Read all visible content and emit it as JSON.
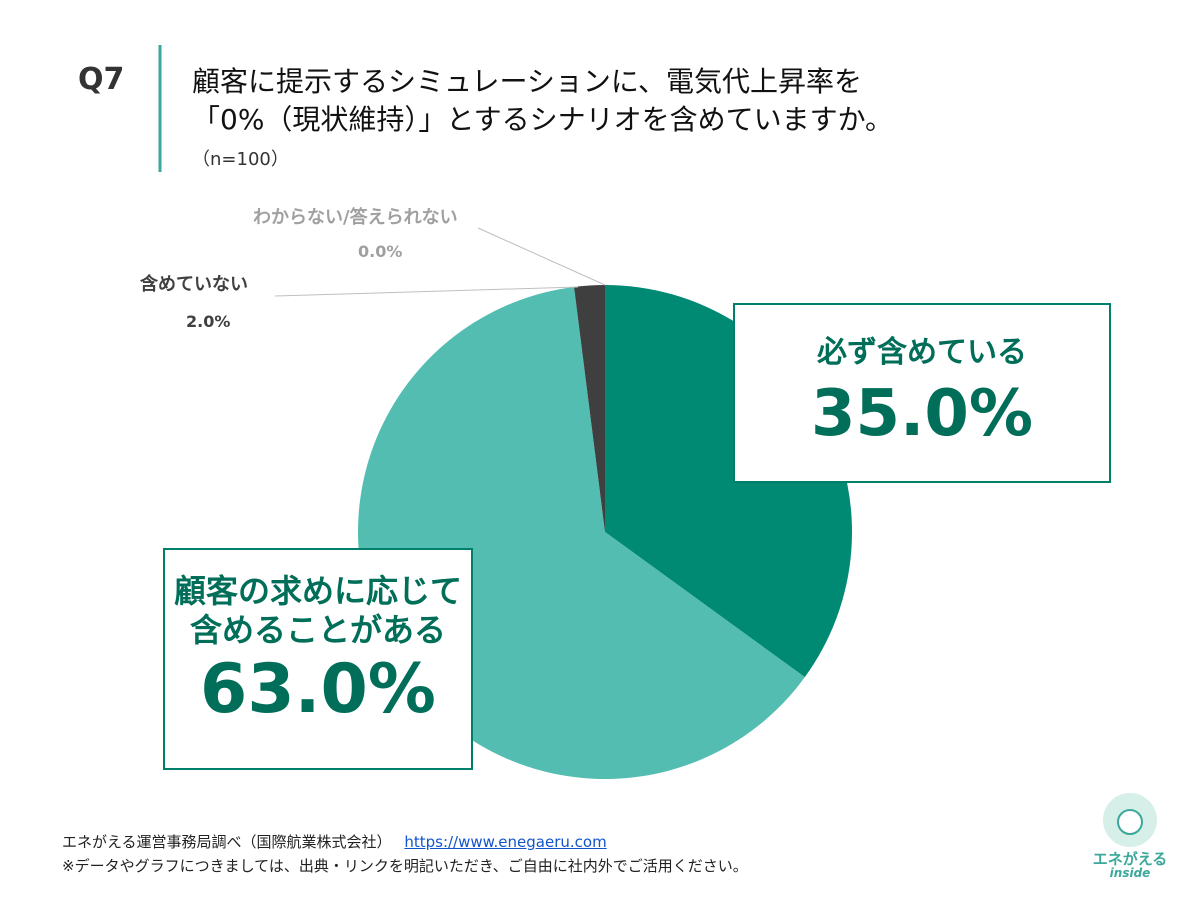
{
  "header": {
    "question": "Q7",
    "title_lines": [
      "顧客に提示するシミュレーションに、電気代上昇率を",
      "「0%（現状維持）」とするシナリオを含めていますか。"
    ],
    "subtitle": "（n=100）"
  },
  "chart_data": {
    "type": "pie",
    "categories": [
      "必ず含めている",
      "顧客の求めに応じて含めることがある",
      "含めていない",
      "わからない/答えられない"
    ],
    "values": [
      35.0,
      63.0,
      2.0,
      0.0
    ],
    "value_labels": [
      "35.0%",
      "63.0%",
      "2.0%",
      "0.0%"
    ],
    "colors": [
      "#008a73",
      "#52bdb0",
      "#3f3f3f",
      "#a6a6a6"
    ]
  },
  "footer": {
    "source": "エネがえる運営事務局調べ（国際航業株式会社）",
    "link": "https://www.enegaeru.com",
    "note": "※データやグラフにつきましては、出典・リンクを明記いただき、ご自由に社内外でご活用ください。"
  },
  "logo": {
    "name": "エネがえる",
    "sub": "inside"
  }
}
